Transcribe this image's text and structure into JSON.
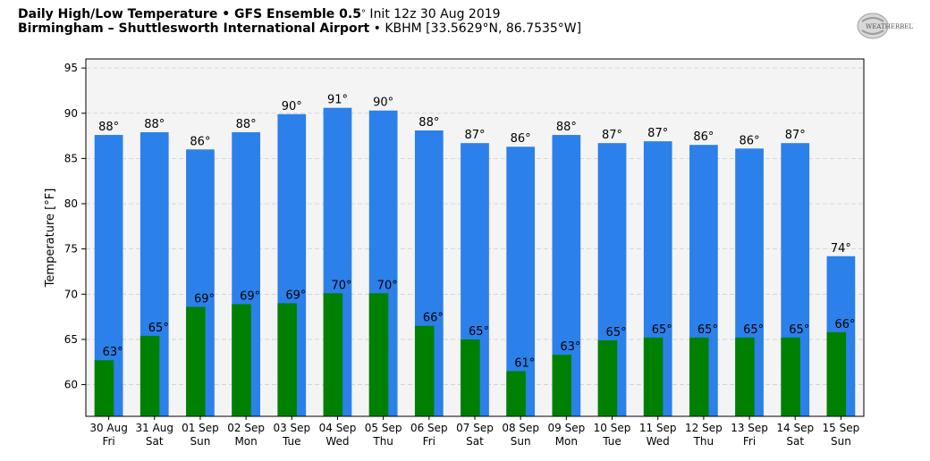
{
  "header": {
    "title_bold": "Daily High/Low Temperature • GFS Ensemble 0.5",
    "title_deg": "°",
    "title_rest": " Init 12z 30 Aug 2019",
    "subtitle_bold": "Birmingham – Shuttlesworth International Airport",
    "subtitle_rest": " • KBHM [33.5629°N, 86.7535°W]",
    "logo_text": "WEATHERBELL"
  },
  "colors": {
    "high": "#2b80ea",
    "low": "#008000",
    "plot_bg": "#f4f4f4"
  },
  "chart_data": {
    "type": "bar",
    "ylabel": "Temperature [°F]",
    "ylim": [
      56.5,
      96
    ],
    "yticks": [
      60,
      65,
      70,
      75,
      80,
      85,
      90,
      95
    ],
    "grid": true,
    "categories": [
      [
        "30 Aug",
        "Fri"
      ],
      [
        "31 Aug",
        "Sat"
      ],
      [
        "01 Sep",
        "Sun"
      ],
      [
        "02 Sep",
        "Mon"
      ],
      [
        "03 Sep",
        "Tue"
      ],
      [
        "04 Sep",
        "Wed"
      ],
      [
        "05 Sep",
        "Thu"
      ],
      [
        "06 Sep",
        "Fri"
      ],
      [
        "07 Sep",
        "Sat"
      ],
      [
        "08 Sep",
        "Sun"
      ],
      [
        "09 Sep",
        "Mon"
      ],
      [
        "10 Sep",
        "Tue"
      ],
      [
        "11 Sep",
        "Wed"
      ],
      [
        "12 Sep",
        "Thu"
      ],
      [
        "13 Sep",
        "Fri"
      ],
      [
        "14 Sep",
        "Sat"
      ],
      [
        "15 Sep",
        "Sun"
      ]
    ],
    "series": [
      {
        "key": "high",
        "values": [
          87.6,
          87.9,
          86.0,
          87.9,
          89.9,
          90.6,
          90.3,
          88.1,
          86.7,
          86.3,
          87.6,
          86.7,
          86.9,
          86.5,
          86.1,
          86.7,
          74.2
        ],
        "labels": [
          "88°",
          "88°",
          "86°",
          "88°",
          "90°",
          "91°",
          "90°",
          "88°",
          "87°",
          "86°",
          "88°",
          "87°",
          "87°",
          "86°",
          "86°",
          "87°",
          "74°"
        ]
      },
      {
        "key": "low",
        "values": [
          62.7,
          65.4,
          68.6,
          68.9,
          69.0,
          70.1,
          70.1,
          66.5,
          65.0,
          61.5,
          63.3,
          64.9,
          65.2,
          65.2,
          65.2,
          65.2,
          65.8
        ],
        "labels": [
          "63°",
          "65°",
          "69°",
          "69°",
          "69°",
          "70°",
          "70°",
          "66°",
          "65°",
          "61°",
          "63°",
          "65°",
          "65°",
          "65°",
          "65°",
          "65°",
          "66°"
        ]
      }
    ]
  }
}
